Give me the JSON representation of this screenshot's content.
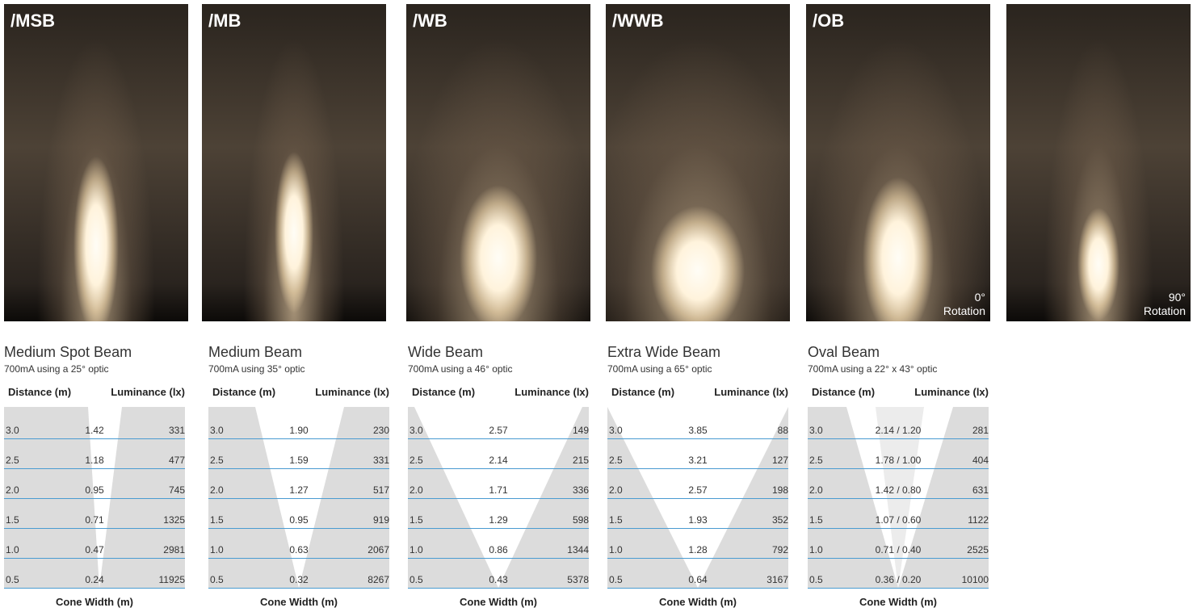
{
  "panels": [
    {
      "label": "/MSB"
    },
    {
      "label": "/MB"
    },
    {
      "label": "/WB"
    },
    {
      "label": "/WWB"
    },
    {
      "label": "/OB",
      "rotation_angle": "0°",
      "rotation_text": "Rotation"
    },
    {
      "rotation_angle": "90°",
      "rotation_text": "Rotation"
    }
  ],
  "tables": [
    {
      "title": "Medium Spot Beam",
      "subtitle": "700mA using a 25° optic",
      "headers": [
        "Distance (m)",
        "Luminance (lx)"
      ],
      "footer": "Cone Width (m)",
      "rows": [
        [
          "3.0",
          "1.42",
          "331"
        ],
        [
          "2.5",
          "1.18",
          "477"
        ],
        [
          "2.0",
          "0.95",
          "745"
        ],
        [
          "1.5",
          "0.71",
          "1325"
        ],
        [
          "1.0",
          "0.47",
          "2981"
        ],
        [
          "0.5",
          "0.24",
          "11925"
        ]
      ]
    },
    {
      "title": "Medium Beam",
      "subtitle": "700mA using 35° optic",
      "headers": [
        "Distance (m)",
        "Luminance (lx)"
      ],
      "footer": "Cone Width (m)",
      "rows": [
        [
          "3.0",
          "1.90",
          "230"
        ],
        [
          "2.5",
          "1.59",
          "331"
        ],
        [
          "2.0",
          "1.27",
          "517"
        ],
        [
          "1.5",
          "0.95",
          "919"
        ],
        [
          "1.0",
          "0.63",
          "2067"
        ],
        [
          "0.5",
          "0.32",
          "8267"
        ]
      ]
    },
    {
      "title": "Wide Beam",
      "subtitle": "700mA using a 46° optic",
      "headers": [
        "Distance (m)",
        "Luminance (lx)"
      ],
      "footer": "Cone Width (m)",
      "rows": [
        [
          "3.0",
          "2.57",
          "149"
        ],
        [
          "2.5",
          "2.14",
          "215"
        ],
        [
          "2.0",
          "1.71",
          "336"
        ],
        [
          "1.5",
          "1.29",
          "598"
        ],
        [
          "1.0",
          "0.86",
          "1344"
        ],
        [
          "0.5",
          "0.43",
          "5378"
        ]
      ]
    },
    {
      "title": "Extra Wide Beam",
      "subtitle": "700mA using a 65° optic",
      "headers": [
        "Distance (m)",
        "Luminance (lx)"
      ],
      "footer": "Cone Width (m)",
      "rows": [
        [
          "3.0",
          "3.85",
          "88"
        ],
        [
          "2.5",
          "3.21",
          "127"
        ],
        [
          "2.0",
          "2.57",
          "198"
        ],
        [
          "1.5",
          "1.93",
          "352"
        ],
        [
          "1.0",
          "1.28",
          "792"
        ],
        [
          "0.5",
          "0.64",
          "3167"
        ]
      ]
    },
    {
      "title": "Oval Beam",
      "subtitle": "700mA using a 22° x 43° optic",
      "headers": [
        "Distance (m)",
        "Luminance (lx)"
      ],
      "footer": "Cone Width (m)",
      "rows": [
        [
          "3.0",
          "2.14 / 1.20",
          "281"
        ],
        [
          "2.5",
          "1.78 / 1.00",
          "404"
        ],
        [
          "2.0",
          "1.42 / 0.80",
          "631"
        ],
        [
          "1.5",
          "1.07 / 0.60",
          "1122"
        ],
        [
          "1.0",
          "0.71 / 0.40",
          "2525"
        ],
        [
          "0.5",
          "0.36 / 0.20",
          "10100"
        ]
      ]
    }
  ]
}
